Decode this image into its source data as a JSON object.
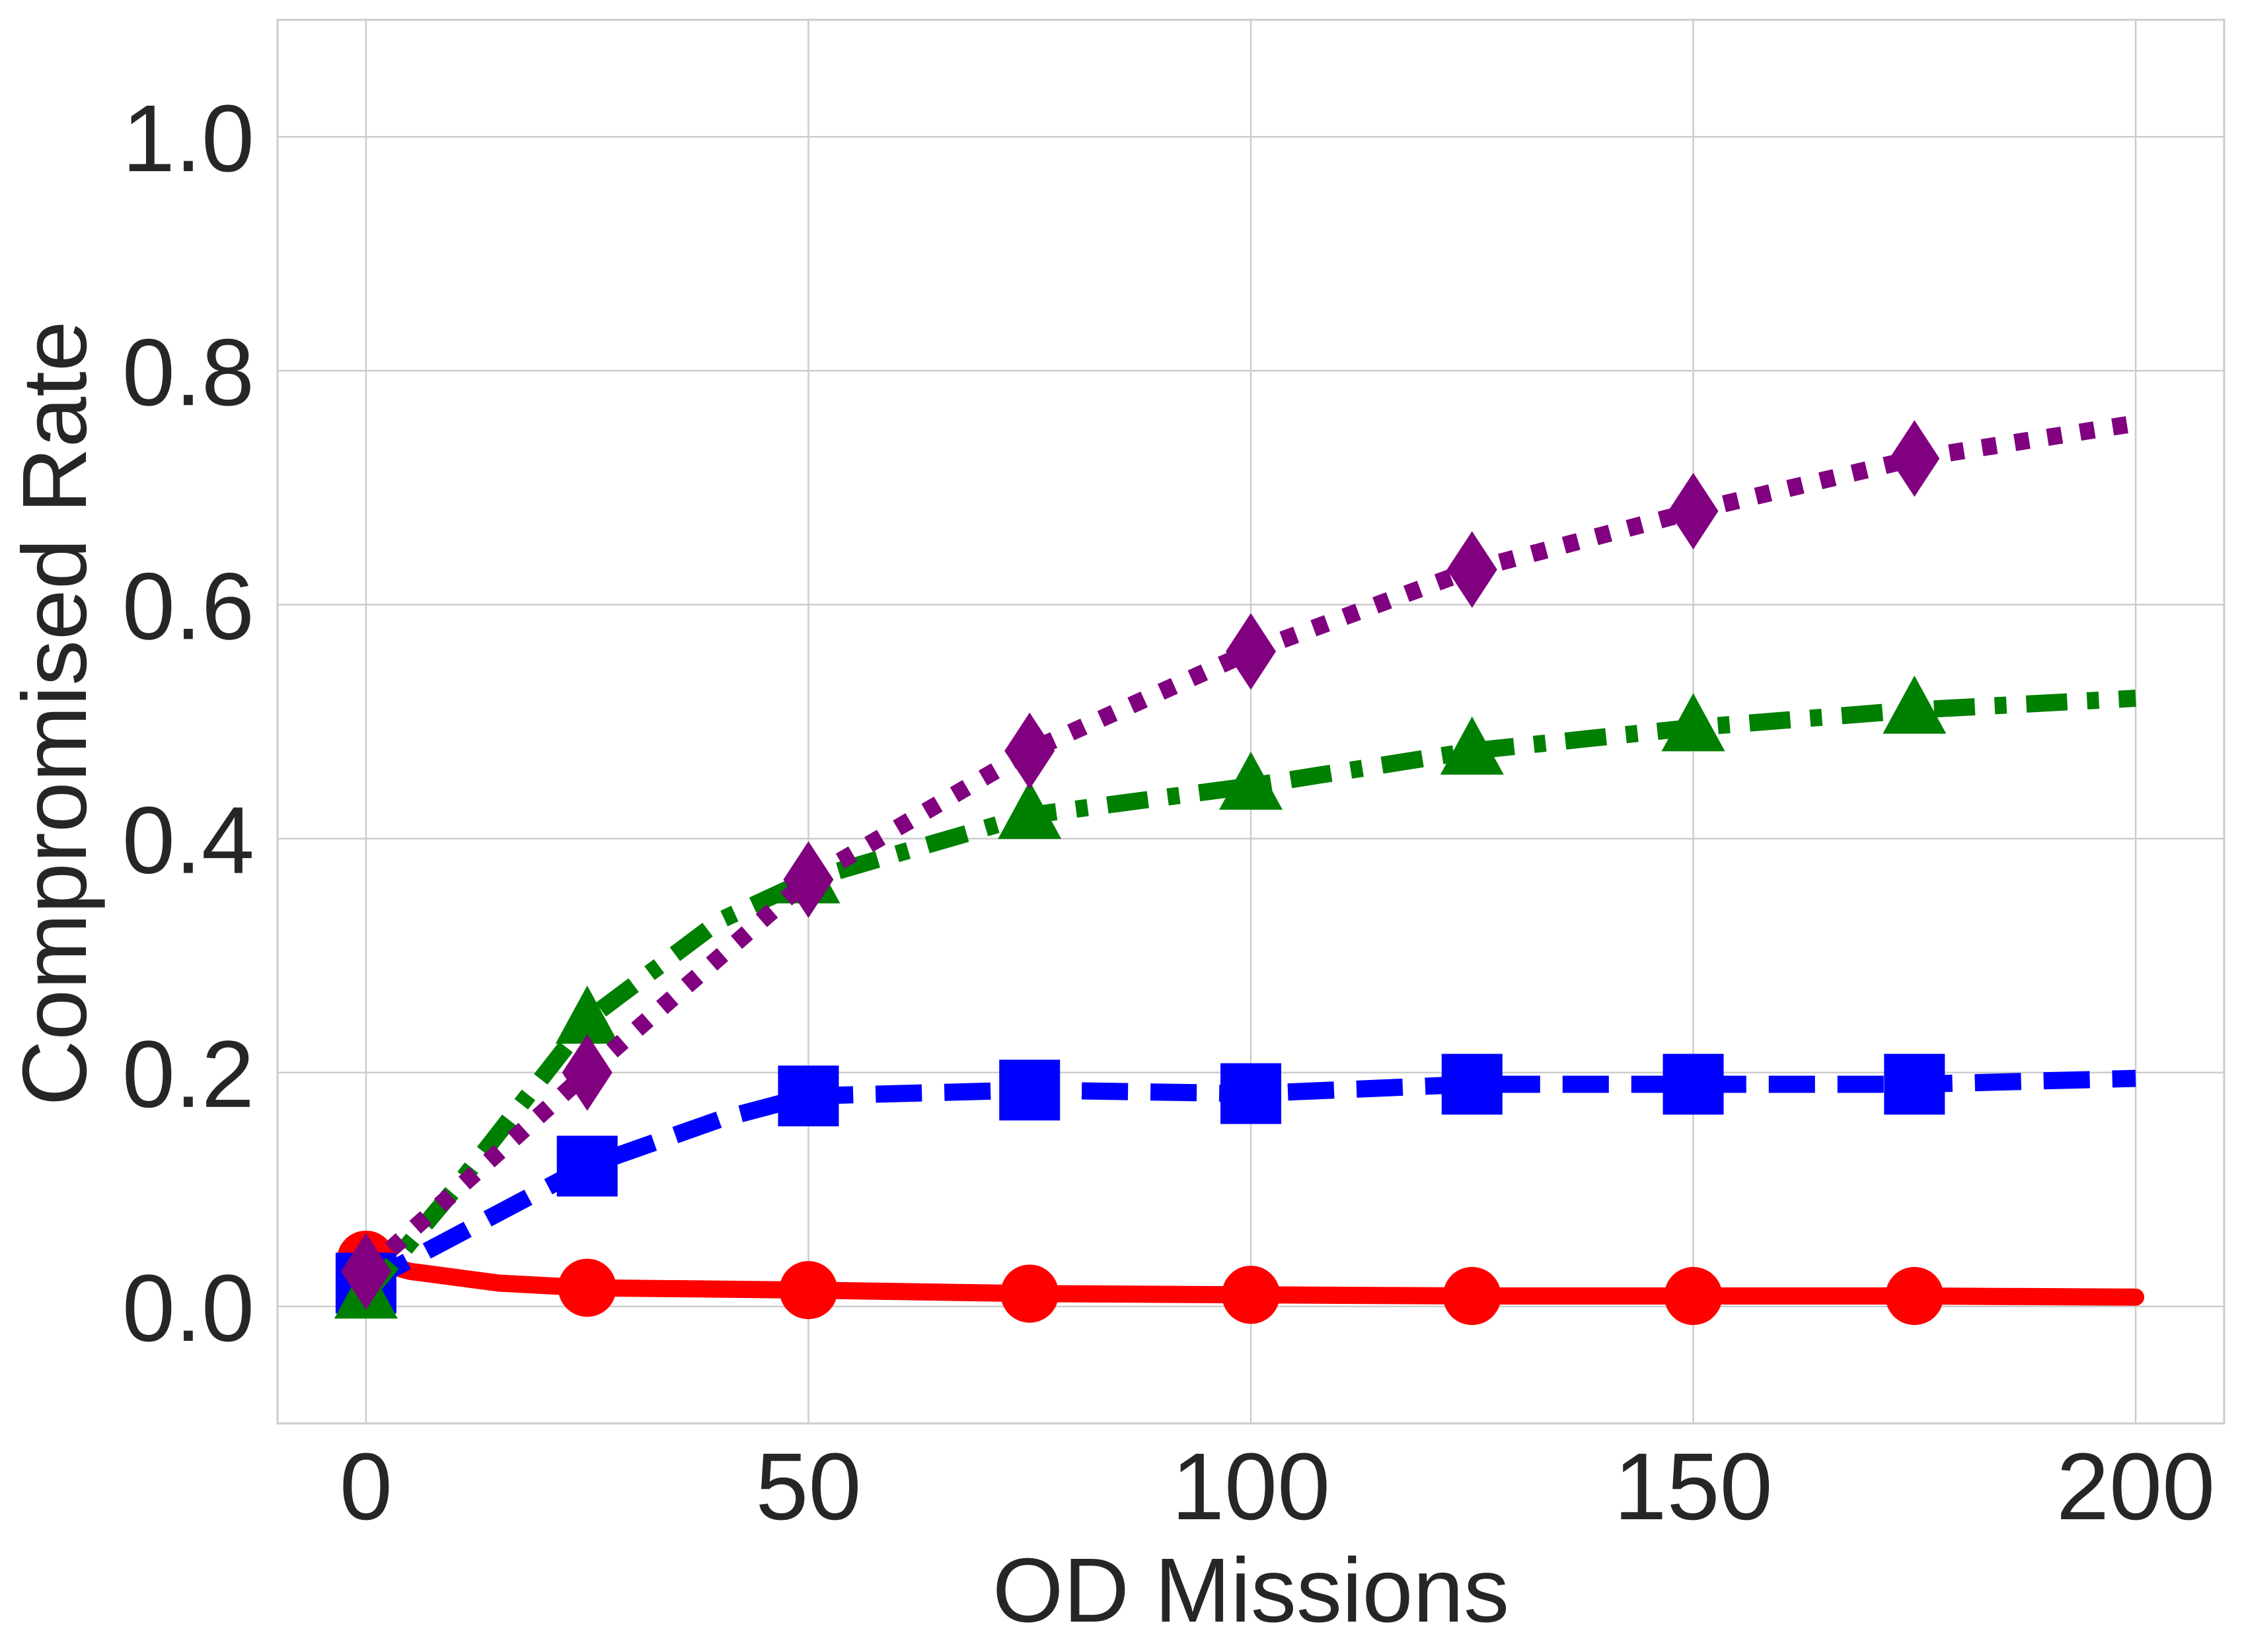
{
  "chart_data": {
    "type": "line",
    "title": "",
    "xlabel": "OD Missions",
    "ylabel": "Compromised Rate",
    "xlim": [
      -10,
      210
    ],
    "ylim": [
      -0.1,
      1.1
    ],
    "grid": true,
    "legend": "none",
    "xticks": [
      0,
      50,
      100,
      150,
      200
    ],
    "xtick_labels": [
      "0",
      "50",
      "100",
      "150",
      "200"
    ],
    "yticks": [
      0.0,
      0.2,
      0.4,
      0.6,
      0.8,
      1.0
    ],
    "ytick_labels": [
      "0.0",
      "0.2",
      "0.4",
      "0.6",
      "0.8",
      "1.0"
    ],
    "series": [
      {
        "name": "red-circle",
        "color": "#ff0000",
        "line_style": "solid",
        "marker": "circle",
        "curve": [
          [
            0,
            0.04
          ],
          [
            5,
            0.03
          ],
          [
            15,
            0.02
          ],
          [
            25,
            0.016
          ],
          [
            50,
            0.014
          ],
          [
            75,
            0.011
          ],
          [
            100,
            0.01
          ],
          [
            125,
            0.009
          ],
          [
            150,
            0.009
          ],
          [
            175,
            0.009
          ],
          [
            200,
            0.008
          ]
        ],
        "x": [
          0,
          25,
          50,
          75,
          100,
          125,
          150,
          175
        ],
        "values": [
          0.04,
          0.016,
          0.014,
          0.011,
          0.01,
          0.009,
          0.009,
          0.009
        ]
      },
      {
        "name": "blue-square",
        "color": "#0000ff",
        "line_style": "dashed",
        "marker": "square",
        "curve": [
          [
            0,
            0.02
          ],
          [
            10,
            0.06
          ],
          [
            25,
            0.12
          ],
          [
            40,
            0.16
          ],
          [
            50,
            0.18
          ],
          [
            75,
            0.185
          ],
          [
            100,
            0.182
          ],
          [
            125,
            0.19
          ],
          [
            150,
            0.19
          ],
          [
            175,
            0.19
          ],
          [
            200,
            0.195
          ]
        ],
        "x": [
          0,
          25,
          50,
          75,
          100,
          125,
          150,
          175
        ],
        "values": [
          0.02,
          0.12,
          0.18,
          0.185,
          0.182,
          0.19,
          0.19,
          0.19
        ]
      },
      {
        "name": "green-triangle",
        "color": "#008000",
        "line_style": "dashdot",
        "marker": "triangle",
        "curve": [
          [
            0,
            0.01
          ],
          [
            10,
            0.1
          ],
          [
            25,
            0.245
          ],
          [
            40,
            0.33
          ],
          [
            50,
            0.365
          ],
          [
            75,
            0.42
          ],
          [
            100,
            0.445
          ],
          [
            125,
            0.475
          ],
          [
            150,
            0.495
          ],
          [
            175,
            0.51
          ],
          [
            200,
            0.52
          ]
        ],
        "x": [
          0,
          25,
          50,
          75,
          100,
          125,
          150,
          175
        ],
        "values": [
          0.01,
          0.245,
          0.365,
          0.42,
          0.445,
          0.475,
          0.495,
          0.51
        ]
      },
      {
        "name": "purple-diamond",
        "color": "#800080",
        "line_style": "dotted",
        "marker": "diamond",
        "curve": [
          [
            0,
            0.03
          ],
          [
            25,
            0.2
          ],
          [
            50,
            0.365
          ],
          [
            75,
            0.475
          ],
          [
            100,
            0.56
          ],
          [
            125,
            0.63
          ],
          [
            150,
            0.68
          ],
          [
            175,
            0.725
          ],
          [
            200,
            0.755
          ]
        ],
        "x": [
          0,
          25,
          50,
          75,
          100,
          125,
          150,
          175
        ],
        "values": [
          0.03,
          0.2,
          0.365,
          0.475,
          0.56,
          0.63,
          0.68,
          0.725
        ]
      }
    ]
  }
}
